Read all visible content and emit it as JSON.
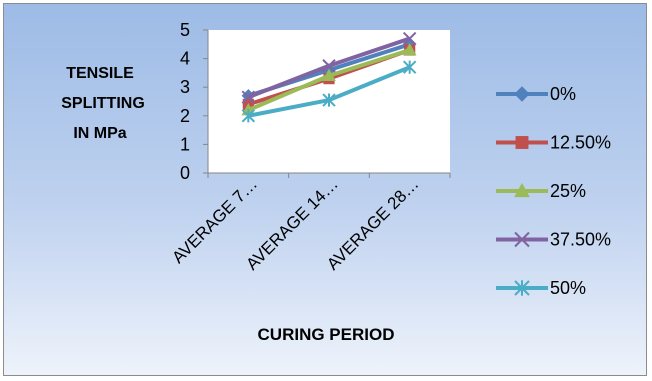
{
  "chart_data": {
    "type": "line",
    "categories": [
      "AVERAGE 7…",
      "AVERAGE 14…",
      "AVERAGE 28…"
    ],
    "series": [
      {
        "name": "0%",
        "values": [
          2.7,
          3.6,
          4.5
        ],
        "color": "#4f81bd",
        "marker": "diamond"
      },
      {
        "name": "12.50%",
        "values": [
          2.4,
          3.3,
          4.3
        ],
        "color": "#c0504d",
        "marker": "square"
      },
      {
        "name": "25%",
        "values": [
          2.2,
          3.4,
          4.3
        ],
        "color": "#9bbb59",
        "marker": "triangle"
      },
      {
        "name": "37.50%",
        "values": [
          2.65,
          3.75,
          4.7
        ],
        "color": "#8064a2",
        "marker": "x"
      },
      {
        "name": "50%",
        "values": [
          2.0,
          2.55,
          3.7
        ],
        "color": "#4bacc6",
        "marker": "star"
      }
    ],
    "ylabel_lines": [
      "TENSILE",
      "SPLITTING",
      "IN MPa"
    ],
    "xlabel": "CURING PERIOD",
    "ylim": [
      0,
      5
    ],
    "yticks": [
      "0",
      "1",
      "2",
      "3",
      "4",
      "5"
    ],
    "grid": false,
    "legend_position": "right"
  }
}
